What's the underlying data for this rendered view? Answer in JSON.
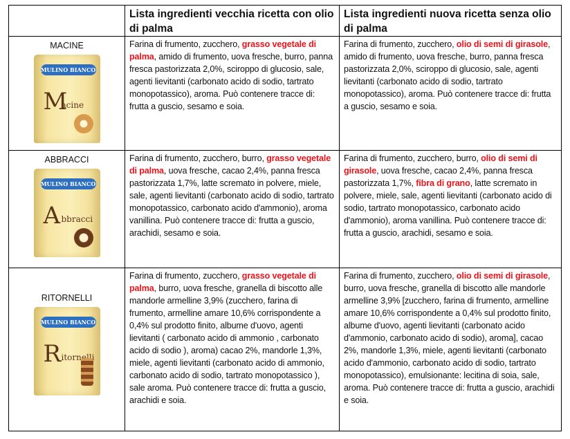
{
  "headers": {
    "product": "",
    "old": "Lista ingredienti vecchia ricetta con olio di palma",
    "new": "Lista ingredienti nuova ricetta senza olio di palma"
  },
  "rows": [
    {
      "product": "MACINE",
      "package": {
        "brand": "Mulino Bianco",
        "name": "Macine"
      },
      "old": {
        "pre": "Farina di frumento, zucchero, ",
        "hl": "grasso vegetale di palma",
        "post": ", amido di frumento, uova fresche, burro, panna fresca pastorizzata 2,0%, sciroppo di glucosio, sale, agenti lievitanti (carbonato acido di sodio, tartrato monopotassico), aroma. Può contenere tracce di: frutta a guscio, sesamo e soia."
      },
      "new": {
        "pre": "Farina di frumento, zucchero, ",
        "hl": "olio di semi di girasole",
        "post": ", amido di frumento, uova fresche, burro, panna fresca pastorizzata 2,0%, sciroppo di glucosio, sale, agenti lievitanti (carbonato acido di sodio, tartrato monopotassico), aroma. Può contenere tracce di: frutta a guscio, sesamo e soia."
      }
    },
    {
      "product": "ABBRACCI",
      "package": {
        "brand": "Mulino Bianco",
        "name": "Abbracci"
      },
      "old": {
        "pre": "Farina di frumento, zucchero, burro, ",
        "hl": "grasso vegetale di palma",
        "post": ", uova fresche, cacao 2,4%, panna fresca pastorizzata 1,7%, latte scremato in polvere, miele, sale, agenti lievitanti (carbonato acido di sodio, tartrato monopotassico, carbonato acido d'ammonio), aroma vanillina. Può contenere tracce di: frutta a guscio, arachidi, sesamo e soia."
      },
      "new": {
        "pre": "Farina di frumento, zucchero, burro, ",
        "hl": "olio di semi di girasole",
        "mid": ", uova fresche, cacao 2,4%, panna fresca pastorizzata 1,7%, ",
        "hl2": "fibra di grano",
        "post": ", latte scremato in polvere, miele, sale, agenti lievitanti (carbonato acido di sodio, tartrato monopotassico, carbonato acido d'ammonio), aroma vanillina. Può contenere tracce di: frutta a guscio, arachidi, sesamo e soia."
      }
    },
    {
      "product": "RITORNELLI",
      "package": {
        "brand": "Mulino Bianco",
        "name": "Ritornelli"
      },
      "old": {
        "pre": "Farina di frumento, zucchero, ",
        "hl": "grasso vegetale di palma",
        "post": ", burro, uova fresche, granella di biscotto alle mandorle armelline 3,9% (zucchero, farina di frumento, armelline amare 10,6% corrispondente a 0,4% sul prodotto finito, albume d'uovo, agenti lievitanti ( carbonato acido di ammonio , carbonato acido di sodio ), aroma) cacao 2%, mandorle 1,3%, miele, agenti lievitanti (carbonato acido di ammonio, carbonato acido di sodio, tartrato monopotassico ), sale aroma. Può contenere tracce di: frutta a guscio, arachidi e soia."
      },
      "new": {
        "pre": "Farina di frumento, zucchero, ",
        "hl": "olio di semi di girasole",
        "post": ", burro, uova fresche, granella di biscotto alle mandorle armelline 3,9% [zucchero, farina di frumento, armelline amare 10,6% corrispondente a 0,4% sul prodotto finito, albume d'uovo, agenti lievitanti (carbonato acido d'ammonio, carbonato acido di sodio), aroma], cacao 2%, mandorle 1,3%, miele, agenti lievitanti (carbonato acido d'ammonio, carbonato acido di sodio, tartrato monopotassico), emulsionante: lecitina di soia, sale, aroma. Può contenere tracce di: frutta a guscio, arachidi e soia."
      }
    }
  ]
}
